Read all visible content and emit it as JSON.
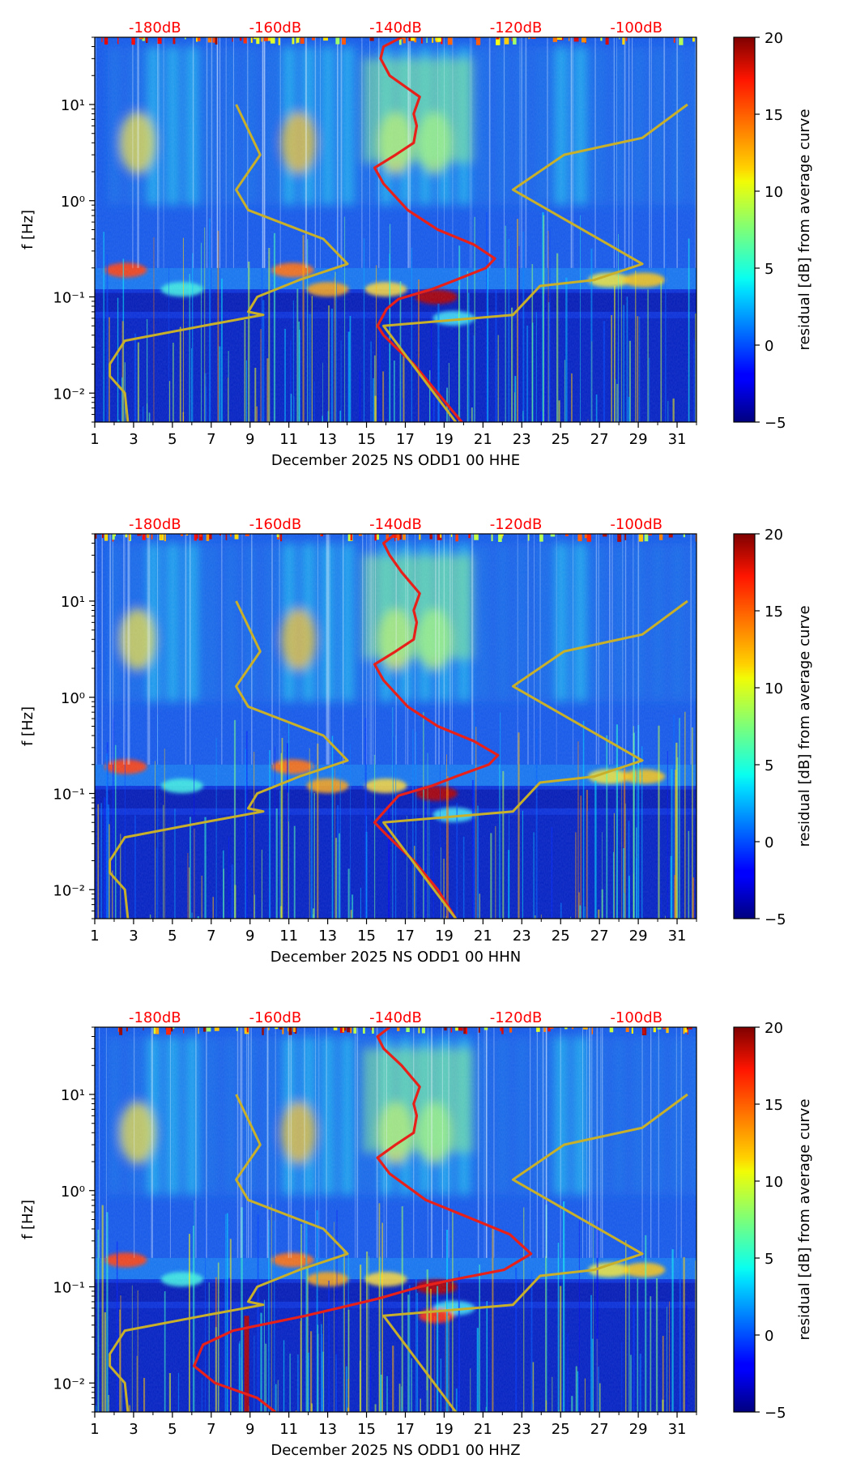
{
  "figure": {
    "colorbar_label": "residual [dB] from average curve",
    "colorbar_ticks": [
      20,
      15,
      10,
      5,
      0,
      -5
    ],
    "colorbar_tick_labels": [
      "20",
      "15",
      "10",
      "5",
      "0",
      "−5"
    ],
    "ylabel": "f [Hz]",
    "x_tick_labels": [
      "1",
      "3",
      "5",
      "7",
      "9",
      "11",
      "13",
      "15",
      "17",
      "19",
      "21",
      "23",
      "25",
      "27",
      "29",
      "31"
    ],
    "y_tick_labels": [
      "10⁻²",
      "10⁻¹",
      "10⁰",
      "10¹"
    ],
    "top_db_labels": [
      "-180dB",
      "-160dB",
      "-140dB",
      "-120dB",
      "-100dB"
    ],
    "colors": {
      "curve_red": "#e8201a",
      "curve_olive": "#c8b02a",
      "db_label": "#ff0000"
    }
  },
  "chart_data": [
    {
      "type": "heatmap",
      "title": "",
      "xlabel": "December 2025 NS ODD1 00 HHE",
      "ylabel": "f [Hz]",
      "xlim": [
        1,
        32
      ],
      "ylim": [
        0.005,
        50
      ],
      "yscale": "log",
      "clim": [
        -5,
        20
      ],
      "db_axis": {
        "labels": [
          "-180dB",
          "-160dB",
          "-140dB",
          "-120dB",
          "-100dB"
        ],
        "values": [
          -180,
          -160,
          -140,
          -120,
          -100
        ],
        "range": [
          -190,
          -90
        ]
      },
      "series": [
        {
          "name": "station_psd",
          "color": "#e8201a",
          "points": [
            [
              50,
              -139
            ],
            [
              40,
              -142
            ],
            [
              30,
              -142.5
            ],
            [
              20,
              -141
            ],
            [
              12,
              -136
            ],
            [
              8,
              -137
            ],
            [
              6,
              -136.5
            ],
            [
              4,
              -137
            ],
            [
              3,
              -140
            ],
            [
              2.2,
              -143.5
            ],
            [
              1.5,
              -142
            ],
            [
              0.8,
              -138
            ],
            [
              0.5,
              -133
            ],
            [
              0.35,
              -127
            ],
            [
              0.25,
              -123.5
            ],
            [
              0.2,
              -125
            ],
            [
              0.15,
              -130
            ],
            [
              0.12,
              -134
            ],
            [
              0.095,
              -139.5
            ],
            [
              0.075,
              -141.5
            ],
            [
              0.05,
              -143
            ],
            [
              0.04,
              -142
            ],
            [
              0.03,
              -140
            ],
            [
              0.02,
              -137
            ],
            [
              0.01,
              -133
            ],
            [
              0.005,
              -129
            ]
          ]
        },
        {
          "name": "noise_model_low",
          "color": "#c8b02a",
          "points": [
            [
              10,
              -166.5
            ],
            [
              3,
              -162.5
            ],
            [
              1.3,
              -166.5
            ],
            [
              0.8,
              -164.5
            ],
            [
              0.4,
              -152
            ],
            [
              0.22,
              -148
            ],
            [
              0.15,
              -156
            ],
            [
              0.1,
              -163
            ],
            [
              0.07,
              -164.5
            ],
            [
              0.065,
              -162
            ],
            [
              0.05,
              -172
            ],
            [
              0.035,
              -185
            ],
            [
              0.02,
              -187.5
            ],
            [
              0.015,
              -187.5
            ],
            [
              0.01,
              -185
            ],
            [
              0.005,
              -184.5
            ]
          ]
        },
        {
          "name": "noise_model_high",
          "color": "#c8b02a",
          "points": [
            [
              10,
              -91.5
            ],
            [
              4.5,
              -99
            ],
            [
              3,
              -112
            ],
            [
              1.3,
              -120.5
            ],
            [
              0.22,
              -99
            ],
            [
              0.15,
              -107
            ],
            [
              0.13,
              -116
            ],
            [
              0.065,
              -120.5
            ],
            [
              0.05,
              -142
            ],
            [
              0.005,
              -130
            ]
          ]
        }
      ]
    },
    {
      "type": "heatmap",
      "title": "",
      "xlabel": "December 2025 NS ODD1 00 HHN",
      "ylabel": "f [Hz]",
      "xlim": [
        1,
        32
      ],
      "ylim": [
        0.005,
        50
      ],
      "yscale": "log",
      "clim": [
        -5,
        20
      ],
      "db_axis": {
        "labels": [
          "-180dB",
          "-160dB",
          "-140dB",
          "-120dB",
          "-100dB"
        ],
        "values": [
          -180,
          -160,
          -140,
          -120,
          -100
        ],
        "range": [
          -190,
          -90
        ]
      },
      "series": [
        {
          "name": "station_psd",
          "color": "#e8201a",
          "points": [
            [
              50,
              -140
            ],
            [
              40,
              -142
            ],
            [
              30,
              -141
            ],
            [
              20,
              -139
            ],
            [
              12,
              -136
            ],
            [
              8,
              -137
            ],
            [
              6,
              -136.5
            ],
            [
              4,
              -137
            ],
            [
              3,
              -140
            ],
            [
              2.2,
              -143.5
            ],
            [
              1.5,
              -142
            ],
            [
              0.8,
              -138
            ],
            [
              0.5,
              -133
            ],
            [
              0.35,
              -127
            ],
            [
              0.25,
              -123
            ],
            [
              0.2,
              -124.5
            ],
            [
              0.15,
              -130
            ],
            [
              0.12,
              -134
            ],
            [
              0.095,
              -139.5
            ],
            [
              0.075,
              -141
            ],
            [
              0.05,
              -143.5
            ],
            [
              0.04,
              -142
            ],
            [
              0.03,
              -140
            ],
            [
              0.02,
              -137
            ],
            [
              0.01,
              -133
            ],
            [
              0.005,
              -130
            ]
          ]
        },
        {
          "name": "noise_model_low",
          "color": "#c8b02a",
          "points": [
            [
              10,
              -166.5
            ],
            [
              3,
              -162.5
            ],
            [
              1.3,
              -166.5
            ],
            [
              0.8,
              -164.5
            ],
            [
              0.4,
              -152
            ],
            [
              0.22,
              -148
            ],
            [
              0.15,
              -156
            ],
            [
              0.1,
              -163
            ],
            [
              0.07,
              -164.5
            ],
            [
              0.065,
              -162
            ],
            [
              0.05,
              -172
            ],
            [
              0.035,
              -185
            ],
            [
              0.02,
              -187.5
            ],
            [
              0.015,
              -187.5
            ],
            [
              0.01,
              -185
            ],
            [
              0.005,
              -184.5
            ]
          ]
        },
        {
          "name": "noise_model_high",
          "color": "#c8b02a",
          "points": [
            [
              10,
              -91.5
            ],
            [
              4.5,
              -99
            ],
            [
              3,
              -112
            ],
            [
              1.3,
              -120.5
            ],
            [
              0.22,
              -99
            ],
            [
              0.15,
              -107
            ],
            [
              0.13,
              -116
            ],
            [
              0.065,
              -120.5
            ],
            [
              0.05,
              -142
            ],
            [
              0.005,
              -130
            ]
          ]
        }
      ]
    },
    {
      "type": "heatmap",
      "title": "",
      "xlabel": "December 2025 NS ODD1 00 HHZ",
      "ylabel": "f [Hz]",
      "xlim": [
        1,
        32
      ],
      "ylim": [
        0.005,
        50
      ],
      "yscale": "log",
      "clim": [
        -5,
        20
      ],
      "db_axis": {
        "labels": [
          "-180dB",
          "-160dB",
          "-140dB",
          "-120dB",
          "-100dB"
        ],
        "values": [
          -180,
          -160,
          -140,
          -120,
          -100
        ],
        "range": [
          -190,
          -90
        ]
      },
      "series": [
        {
          "name": "station_psd",
          "color": "#e8201a",
          "points": [
            [
              50,
              -141
            ],
            [
              40,
              -143
            ],
            [
              30,
              -142
            ],
            [
              20,
              -139
            ],
            [
              12,
              -136
            ],
            [
              8,
              -137
            ],
            [
              6,
              -136.5
            ],
            [
              4,
              -137
            ],
            [
              3,
              -140
            ],
            [
              2.2,
              -143
            ],
            [
              1.5,
              -141
            ],
            [
              0.8,
              -135
            ],
            [
              0.5,
              -127
            ],
            [
              0.35,
              -121
            ],
            [
              0.22,
              -117.5
            ],
            [
              0.15,
              -122
            ],
            [
              0.12,
              -130
            ],
            [
              0.1,
              -136
            ],
            [
              0.075,
              -143
            ],
            [
              0.05,
              -155
            ],
            [
              0.035,
              -167
            ],
            [
              0.025,
              -172
            ],
            [
              0.015,
              -173.5
            ],
            [
              0.01,
              -170
            ],
            [
              0.007,
              -163
            ],
            [
              0.005,
              -160
            ]
          ]
        },
        {
          "name": "noise_model_low",
          "color": "#c8b02a",
          "points": [
            [
              10,
              -166.5
            ],
            [
              3,
              -162.5
            ],
            [
              1.3,
              -166.5
            ],
            [
              0.8,
              -164.5
            ],
            [
              0.4,
              -152
            ],
            [
              0.22,
              -148
            ],
            [
              0.15,
              -156
            ],
            [
              0.1,
              -163
            ],
            [
              0.07,
              -164.5
            ],
            [
              0.065,
              -162
            ],
            [
              0.05,
              -172
            ],
            [
              0.035,
              -185
            ],
            [
              0.02,
              -187.5
            ],
            [
              0.015,
              -187.5
            ],
            [
              0.01,
              -185
            ],
            [
              0.005,
              -184.5
            ]
          ]
        },
        {
          "name": "noise_model_high",
          "color": "#c8b02a",
          "points": [
            [
              10,
              -91.5
            ],
            [
              4.5,
              -99
            ],
            [
              3,
              -112
            ],
            [
              1.3,
              -120.5
            ],
            [
              0.22,
              -99
            ],
            [
              0.15,
              -107
            ],
            [
              0.13,
              -116
            ],
            [
              0.065,
              -120.5
            ],
            [
              0.05,
              -142
            ],
            [
              0.005,
              -130
            ]
          ]
        }
      ]
    }
  ]
}
